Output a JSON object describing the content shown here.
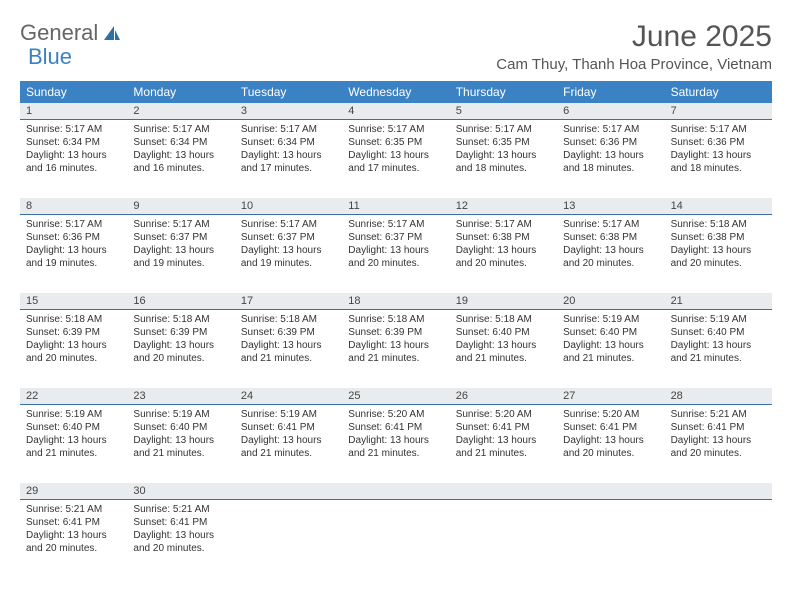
{
  "logo": {
    "text1": "General",
    "text2": "Blue"
  },
  "title": "June 2025",
  "location": "Cam Thuy, Thanh Hoa Province, Vietnam",
  "colors": {
    "header_bg": "#3b82c4",
    "daynum_bg": "#e8ecef",
    "daynum_border": "#3b6f9e",
    "text": "#333333",
    "title_text": "#555555"
  },
  "typography": {
    "title_fontsize": 30,
    "location_fontsize": 15,
    "header_fontsize": 12,
    "daynum_fontsize": 11,
    "body_fontsize": 10
  },
  "day_names": [
    "Sunday",
    "Monday",
    "Tuesday",
    "Wednesday",
    "Thursday",
    "Friday",
    "Saturday"
  ],
  "weeks": [
    [
      {
        "n": "1",
        "sr": "Sunrise: 5:17 AM",
        "ss": "Sunset: 6:34 PM",
        "d1": "Daylight: 13 hours",
        "d2": "and 16 minutes."
      },
      {
        "n": "2",
        "sr": "Sunrise: 5:17 AM",
        "ss": "Sunset: 6:34 PM",
        "d1": "Daylight: 13 hours",
        "d2": "and 16 minutes."
      },
      {
        "n": "3",
        "sr": "Sunrise: 5:17 AM",
        "ss": "Sunset: 6:34 PM",
        "d1": "Daylight: 13 hours",
        "d2": "and 17 minutes."
      },
      {
        "n": "4",
        "sr": "Sunrise: 5:17 AM",
        "ss": "Sunset: 6:35 PM",
        "d1": "Daylight: 13 hours",
        "d2": "and 17 minutes."
      },
      {
        "n": "5",
        "sr": "Sunrise: 5:17 AM",
        "ss": "Sunset: 6:35 PM",
        "d1": "Daylight: 13 hours",
        "d2": "and 18 minutes."
      },
      {
        "n": "6",
        "sr": "Sunrise: 5:17 AM",
        "ss": "Sunset: 6:36 PM",
        "d1": "Daylight: 13 hours",
        "d2": "and 18 minutes."
      },
      {
        "n": "7",
        "sr": "Sunrise: 5:17 AM",
        "ss": "Sunset: 6:36 PM",
        "d1": "Daylight: 13 hours",
        "d2": "and 18 minutes."
      }
    ],
    [
      {
        "n": "8",
        "sr": "Sunrise: 5:17 AM",
        "ss": "Sunset: 6:36 PM",
        "d1": "Daylight: 13 hours",
        "d2": "and 19 minutes."
      },
      {
        "n": "9",
        "sr": "Sunrise: 5:17 AM",
        "ss": "Sunset: 6:37 PM",
        "d1": "Daylight: 13 hours",
        "d2": "and 19 minutes."
      },
      {
        "n": "10",
        "sr": "Sunrise: 5:17 AM",
        "ss": "Sunset: 6:37 PM",
        "d1": "Daylight: 13 hours",
        "d2": "and 19 minutes."
      },
      {
        "n": "11",
        "sr": "Sunrise: 5:17 AM",
        "ss": "Sunset: 6:37 PM",
        "d1": "Daylight: 13 hours",
        "d2": "and 20 minutes."
      },
      {
        "n": "12",
        "sr": "Sunrise: 5:17 AM",
        "ss": "Sunset: 6:38 PM",
        "d1": "Daylight: 13 hours",
        "d2": "and 20 minutes."
      },
      {
        "n": "13",
        "sr": "Sunrise: 5:17 AM",
        "ss": "Sunset: 6:38 PM",
        "d1": "Daylight: 13 hours",
        "d2": "and 20 minutes."
      },
      {
        "n": "14",
        "sr": "Sunrise: 5:18 AM",
        "ss": "Sunset: 6:38 PM",
        "d1": "Daylight: 13 hours",
        "d2": "and 20 minutes."
      }
    ],
    [
      {
        "n": "15",
        "sr": "Sunrise: 5:18 AM",
        "ss": "Sunset: 6:39 PM",
        "d1": "Daylight: 13 hours",
        "d2": "and 20 minutes."
      },
      {
        "n": "16",
        "sr": "Sunrise: 5:18 AM",
        "ss": "Sunset: 6:39 PM",
        "d1": "Daylight: 13 hours",
        "d2": "and 20 minutes."
      },
      {
        "n": "17",
        "sr": "Sunrise: 5:18 AM",
        "ss": "Sunset: 6:39 PM",
        "d1": "Daylight: 13 hours",
        "d2": "and 21 minutes."
      },
      {
        "n": "18",
        "sr": "Sunrise: 5:18 AM",
        "ss": "Sunset: 6:39 PM",
        "d1": "Daylight: 13 hours",
        "d2": "and 21 minutes."
      },
      {
        "n": "19",
        "sr": "Sunrise: 5:18 AM",
        "ss": "Sunset: 6:40 PM",
        "d1": "Daylight: 13 hours",
        "d2": "and 21 minutes."
      },
      {
        "n": "20",
        "sr": "Sunrise: 5:19 AM",
        "ss": "Sunset: 6:40 PM",
        "d1": "Daylight: 13 hours",
        "d2": "and 21 minutes."
      },
      {
        "n": "21",
        "sr": "Sunrise: 5:19 AM",
        "ss": "Sunset: 6:40 PM",
        "d1": "Daylight: 13 hours",
        "d2": "and 21 minutes."
      }
    ],
    [
      {
        "n": "22",
        "sr": "Sunrise: 5:19 AM",
        "ss": "Sunset: 6:40 PM",
        "d1": "Daylight: 13 hours",
        "d2": "and 21 minutes."
      },
      {
        "n": "23",
        "sr": "Sunrise: 5:19 AM",
        "ss": "Sunset: 6:40 PM",
        "d1": "Daylight: 13 hours",
        "d2": "and 21 minutes."
      },
      {
        "n": "24",
        "sr": "Sunrise: 5:19 AM",
        "ss": "Sunset: 6:41 PM",
        "d1": "Daylight: 13 hours",
        "d2": "and 21 minutes."
      },
      {
        "n": "25",
        "sr": "Sunrise: 5:20 AM",
        "ss": "Sunset: 6:41 PM",
        "d1": "Daylight: 13 hours",
        "d2": "and 21 minutes."
      },
      {
        "n": "26",
        "sr": "Sunrise: 5:20 AM",
        "ss": "Sunset: 6:41 PM",
        "d1": "Daylight: 13 hours",
        "d2": "and 21 minutes."
      },
      {
        "n": "27",
        "sr": "Sunrise: 5:20 AM",
        "ss": "Sunset: 6:41 PM",
        "d1": "Daylight: 13 hours",
        "d2": "and 20 minutes."
      },
      {
        "n": "28",
        "sr": "Sunrise: 5:21 AM",
        "ss": "Sunset: 6:41 PM",
        "d1": "Daylight: 13 hours",
        "d2": "and 20 minutes."
      }
    ],
    [
      {
        "n": "29",
        "sr": "Sunrise: 5:21 AM",
        "ss": "Sunset: 6:41 PM",
        "d1": "Daylight: 13 hours",
        "d2": "and 20 minutes."
      },
      {
        "n": "30",
        "sr": "Sunrise: 5:21 AM",
        "ss": "Sunset: 6:41 PM",
        "d1": "Daylight: 13 hours",
        "d2": "and 20 minutes."
      },
      null,
      null,
      null,
      null,
      null
    ]
  ]
}
